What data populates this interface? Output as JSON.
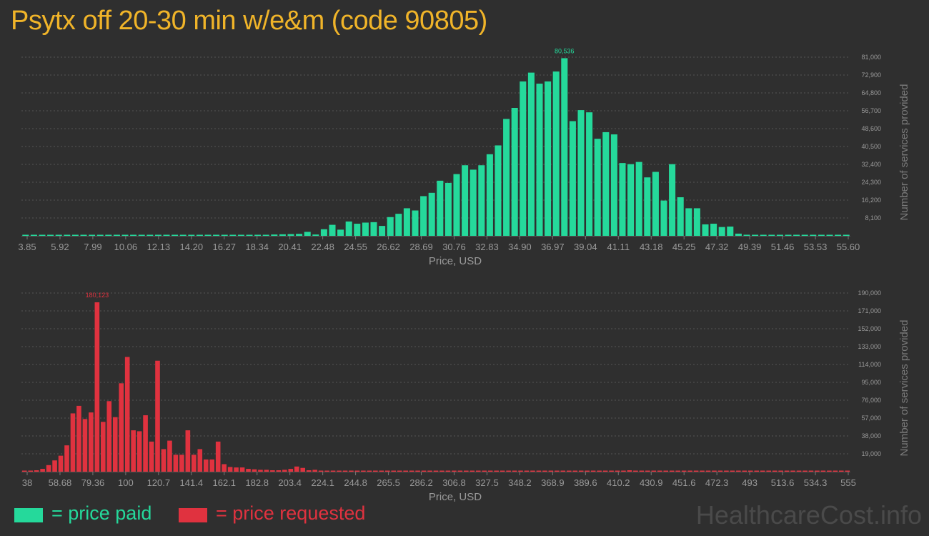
{
  "title": "Psytx off 20-30 min w/e&m (code 90805)",
  "colors": {
    "paid": "#25d99b",
    "requested": "#e0323f",
    "title": "#f0b429",
    "background": "#2f2f2f",
    "grid": "#555555",
    "axis_text": "#9a9a9a"
  },
  "legend": {
    "paid_label": "= price paid",
    "requested_label": "= price requested"
  },
  "watermark": "HealthcareCost.info",
  "chart_data": [
    {
      "type": "bar",
      "xlabel": "Price, USD",
      "ylabel": "Number of services provided",
      "xlim": [
        3.85,
        55.6
      ],
      "ylim": [
        0,
        81000
      ],
      "x_ticks": [
        "3.85",
        "5.92",
        "7.99",
        "10.06",
        "12.13",
        "14.20",
        "16.27",
        "18.34",
        "20.41",
        "22.48",
        "24.55",
        "26.62",
        "28.69",
        "30.76",
        "32.83",
        "34.90",
        "36.97",
        "39.04",
        "41.11",
        "43.18",
        "45.25",
        "47.32",
        "49.39",
        "51.46",
        "53.53",
        "55.60"
      ],
      "y_ticks": [
        "8,100",
        "16,200",
        "24,300",
        "32,400",
        "40,500",
        "48,600",
        "56,700",
        "64,800",
        "72,900",
        "81,000"
      ],
      "peak_label": "80,536",
      "values": [
        150,
        100,
        120,
        90,
        40,
        80,
        60,
        30,
        100,
        50,
        70,
        40,
        30,
        20,
        10,
        50,
        40,
        20,
        10,
        60,
        30,
        20,
        40,
        50,
        80,
        60,
        100,
        200,
        300,
        400,
        600,
        700,
        800,
        900,
        1800,
        600,
        3000,
        5000,
        2800,
        6500,
        5500,
        6000,
        6200,
        4500,
        8500,
        10000,
        12500,
        11500,
        18000,
        19500,
        25000,
        24000,
        28000,
        32000,
        30000,
        32000,
        37000,
        41000,
        53000,
        58000,
        70000,
        74000,
        69000,
        70000,
        74500,
        80536,
        52000,
        57000,
        56000,
        44000,
        47000,
        46000,
        33000,
        32500,
        33500,
        26500,
        29000,
        16000,
        32500,
        17500,
        12500,
        12500,
        5200,
        5500,
        4000,
        4200,
        1000,
        500,
        300,
        150,
        200,
        100,
        40,
        80,
        60,
        40,
        30,
        20,
        50,
        120
      ]
    },
    {
      "type": "bar",
      "xlabel": "Price, USD",
      "ylabel": "Number of services provided",
      "xlim": [
        38,
        555
      ],
      "ylim": [
        0,
        190000
      ],
      "x_ticks": [
        "38",
        "58.68",
        "79.36",
        "100",
        "120.7",
        "141.4",
        "162.1",
        "182.8",
        "203.4",
        "224.1",
        "244.8",
        "265.5",
        "286.2",
        "306.8",
        "327.5",
        "348.2",
        "368.9",
        "389.6",
        "410.2",
        "430.9",
        "451.6",
        "472.3",
        "493",
        "513.6",
        "534.3",
        "555"
      ],
      "y_ticks": [
        "19,000",
        "38,000",
        "57,000",
        "76,000",
        "95,000",
        "114,000",
        "133,000",
        "152,000",
        "171,000",
        "190,000"
      ],
      "peak_label": "180,123",
      "values": [
        200,
        500,
        1500,
        3000,
        7000,
        12000,
        17000,
        28000,
        62000,
        70000,
        56000,
        63000,
        180123,
        53000,
        75000,
        58000,
        94000,
        122000,
        44000,
        43000,
        60000,
        32000,
        118000,
        24000,
        33000,
        18000,
        18000,
        44000,
        18000,
        24000,
        13000,
        13000,
        32000,
        8000,
        5000,
        4500,
        4500,
        3000,
        2500,
        2000,
        2000,
        1500,
        1500,
        2000,
        3000,
        5500,
        4000,
        1500,
        2000,
        1000,
        800,
        600,
        500,
        400,
        400,
        300,
        300,
        200,
        200,
        200,
        300,
        200,
        200,
        150,
        150,
        100,
        100,
        100,
        100,
        100,
        100,
        80,
        100,
        80,
        60,
        50,
        100,
        60,
        40,
        40,
        600,
        40,
        30,
        30,
        30,
        20,
        30,
        50,
        30,
        100,
        20,
        20,
        50,
        200,
        100,
        1000,
        300,
        200,
        300,
        100,
        1500,
        200,
        100,
        50,
        50,
        40,
        30,
        20,
        30,
        20,
        20,
        30,
        20,
        20,
        20,
        20,
        30,
        20,
        20,
        20,
        20,
        20,
        20,
        20,
        20,
        30,
        20,
        20,
        20,
        20,
        20,
        30,
        20,
        20,
        20,
        100,
        800
      ]
    }
  ]
}
